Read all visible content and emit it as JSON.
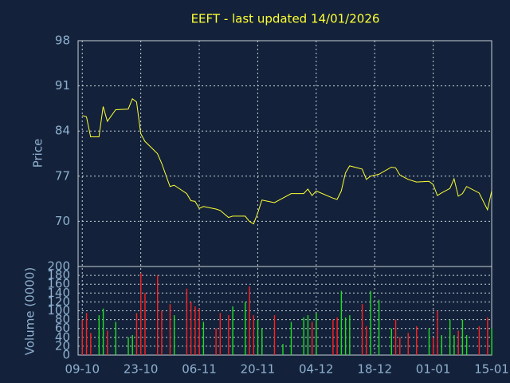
{
  "chart_data": {
    "type": "stock",
    "title": "EEFT - last updated 14/01/2026",
    "price_label": "Price",
    "volume_label": "Volume (0000)",
    "x": [
      0,
      1,
      2,
      4,
      5,
      6,
      8,
      11,
      12,
      13,
      14,
      15,
      18,
      19,
      21,
      22,
      25,
      26,
      27,
      28,
      29,
      32,
      33,
      35,
      36,
      39,
      40,
      41,
      42,
      43,
      46,
      48,
      50,
      53,
      54,
      55,
      56,
      60,
      61,
      62,
      63,
      64,
      67,
      68,
      69,
      71,
      74,
      75,
      76,
      78,
      80,
      83,
      84,
      85,
      86,
      88,
      89,
      90,
      91,
      92,
      95,
      97,
      98
    ],
    "price": [
      86.4,
      86.2,
      83.1,
      83.1,
      87.8,
      85.5,
      87.3,
      87.4,
      89.0,
      88.5,
      83.6,
      82.4,
      80.5,
      79.0,
      75.4,
      75.6,
      74.3,
      73.2,
      73.1,
      72.0,
      72.3,
      71.9,
      71.7,
      70.6,
      70.8,
      70.8,
      70.0,
      69.6,
      71.3,
      73.3,
      72.9,
      73.6,
      74.3,
      74.3,
      75.0,
      74.0,
      74.7,
      73.6,
      73.4,
      74.7,
      77.5,
      78.6,
      78.1,
      76.5,
      77.0,
      77.3,
      78.4,
      78.3,
      77.2,
      76.5,
      76.1,
      76.2,
      75.7,
      74.0,
      74.4,
      75.1,
      76.6,
      73.9,
      74.3,
      75.4,
      74.4,
      71.8,
      74.7
    ],
    "volume": [
      80,
      95,
      50,
      90,
      105,
      55,
      75,
      40,
      45,
      95,
      185,
      140,
      180,
      100,
      115,
      90,
      150,
      120,
      110,
      105,
      75,
      60,
      95,
      90,
      110,
      120,
      155,
      90,
      80,
      60,
      90,
      25,
      75,
      85,
      90,
      75,
      95,
      80,
      85,
      145,
      85,
      90,
      115,
      65,
      145,
      125,
      60,
      80,
      40,
      50,
      65,
      60,
      40,
      100,
      45,
      80,
      45,
      55,
      80,
      45,
      65,
      85,
      60
    ],
    "volume_colors": [
      "r",
      "r",
      "r",
      "g",
      "g",
      "r",
      "g",
      "g",
      "g",
      "r",
      "r",
      "r",
      "r",
      "r",
      "r",
      "g",
      "r",
      "r",
      "r",
      "r",
      "g",
      "r",
      "r",
      "r",
      "g",
      "g",
      "r",
      "r",
      "g",
      "g",
      "r",
      "g",
      "g",
      "g",
      "g",
      "r",
      "g",
      "r",
      "r",
      "g",
      "g",
      "g",
      "r",
      "r",
      "g",
      "g",
      "g",
      "r",
      "r",
      "r",
      "r",
      "g",
      "r",
      "r",
      "g",
      "g",
      "g",
      "r",
      "g",
      "g",
      "r",
      "r",
      "g"
    ],
    "colors": {
      "price": "#ffff33",
      "r": "#ff2020",
      "g": "#22dd22",
      "title": "#ffff33"
    },
    "xlim": [
      -1,
      98
    ],
    "xticks": [
      {
        "value": 0,
        "label": "09-10"
      },
      {
        "value": 14,
        "label": "23-10"
      },
      {
        "value": 28,
        "label": "06-11"
      },
      {
        "value": 42,
        "label": "20-11"
      },
      {
        "value": 56,
        "label": "04-12"
      },
      {
        "value": 70,
        "label": "18-12"
      },
      {
        "value": 84,
        "label": "01-01"
      },
      {
        "value": 98,
        "label": "15-01"
      }
    ],
    "ylim": [
      63,
      98
    ],
    "yticks": [
      70,
      77,
      84,
      91,
      98
    ],
    "y2lim": [
      0,
      200
    ],
    "y2ticks": [
      0,
      20,
      40,
      60,
      80,
      100,
      120,
      140,
      160,
      180,
      200
    ],
    "grid": true
  }
}
